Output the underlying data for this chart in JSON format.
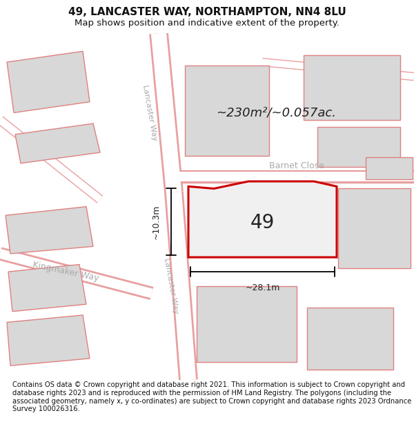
{
  "title_line1": "49, LANCASTER WAY, NORTHAMPTON, NN4 8LU",
  "title_line2": "Map shows position and indicative extent of the property.",
  "footer_text": "Contains OS data © Crown copyright and database right 2021. This information is subject to Crown copyright and database rights 2023 and is reproduced with the permission of HM Land Registry. The polygons (including the associated geometry, namely x, y co-ordinates) are subject to Crown copyright and database rights 2023 Ordnance Survey 100026316.",
  "area_label": "~230m²/~0.057ac.",
  "street_label1": "Lancaster Way",
  "street_label2": "Lancaster Way",
  "street_label3": "Barnet Close",
  "street_label4": "Kingmaker Way",
  "property_number": "49",
  "dim_width": "~28.1m",
  "dim_height": "~10.3m",
  "bg_color": "#ffffff",
  "road_fill": "#ffffff",
  "road_edge": "#e8a0a0",
  "building_fill": "#d8d8d8",
  "building_edge": "#e08080",
  "prop_fill": "#f0f0f0",
  "prop_edge": "#cc0000",
  "map_bg": "#f0f0f0",
  "dim_color": "#000000",
  "text_gray": "#aaaaaa",
  "text_dark": "#222222",
  "title_fs": 11,
  "subtitle_fs": 9.5,
  "footer_fs": 7.2,
  "area_fs": 13,
  "street_fs": 8,
  "prop_num_fs": 20,
  "dim_fs": 9
}
